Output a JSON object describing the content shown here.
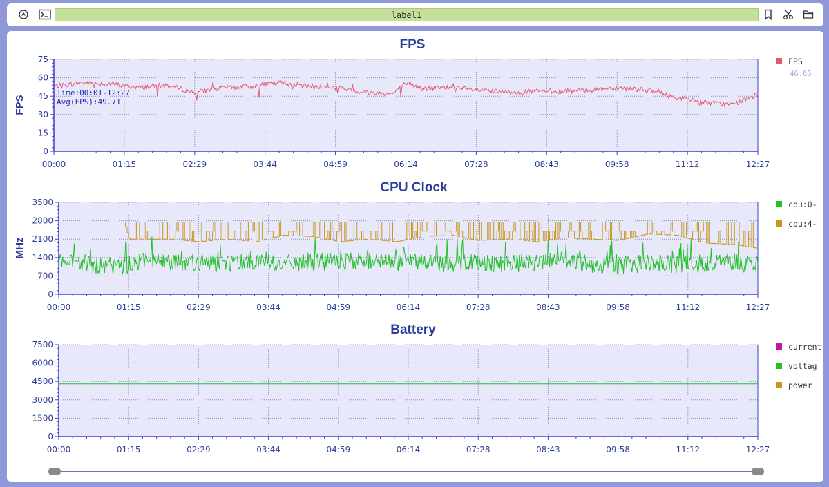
{
  "toolbar": {
    "label": "label1",
    "left_icons": [
      "record-icon",
      "terminal-icon"
    ],
    "right_icons": [
      "bookmark-icon",
      "scissors-icon",
      "folder-icon"
    ]
  },
  "time_ticks": [
    "00:00",
    "01:15",
    "02:29",
    "03:44",
    "04:59",
    "06:14",
    "07:28",
    "08:43",
    "09:58",
    "11:12",
    "12:27"
  ],
  "charts": [
    {
      "title": "FPS",
      "ylabel": "FPS",
      "yticks": [
        "0",
        "15",
        "30",
        "45",
        "60",
        "75"
      ],
      "ylim": [
        0,
        75
      ],
      "annotation": [
        "Time:00:01-12:27",
        "Avg(FPS):49.71"
      ],
      "legend": [
        {
          "label": "FPS",
          "color": "#e8566f",
          "value": "46.66"
        }
      ]
    },
    {
      "title": "CPU Clock",
      "ylabel": "MHz",
      "yticks": [
        "0",
        "700",
        "1400",
        "2100",
        "2800",
        "3500"
      ],
      "ylim": [
        0,
        3500
      ],
      "legend": [
        {
          "label": "cpu:0-",
          "color": "#22c02a"
        },
        {
          "label": "cpu:4-",
          "color": "#c9951e"
        }
      ]
    },
    {
      "title": "Battery",
      "ylabel": "",
      "yticks": [
        "0",
        "1500",
        "3000",
        "4500",
        "6000",
        "7500"
      ],
      "ylim": [
        0,
        7500
      ],
      "legend": [
        {
          "label": "current",
          "color": "#c2169d"
        },
        {
          "label": "voltag",
          "color": "#22c02a"
        },
        {
          "label": "power",
          "color": "#c9951e"
        }
      ]
    }
  ],
  "chart_data": [
    {
      "type": "line",
      "title": "FPS",
      "ylabel": "FPS",
      "ylim": [
        0,
        75
      ],
      "x_range": [
        "00:00",
        "12:27"
      ],
      "series": [
        {
          "name": "FPS",
          "color": "#e8566f",
          "x": [
            "00:00",
            "00:30",
            "01:00",
            "01:30",
            "02:00",
            "02:29",
            "03:00",
            "03:30",
            "04:00",
            "04:30",
            "05:00",
            "05:30",
            "06:00",
            "06:14",
            "06:30",
            "07:00",
            "07:28",
            "08:00",
            "08:30",
            "09:00",
            "09:30",
            "09:58",
            "10:30",
            "11:00",
            "11:30",
            "12:00",
            "12:27"
          ],
          "values": [
            53,
            56,
            55,
            52,
            54,
            48,
            52,
            53,
            56,
            53,
            52,
            48,
            47,
            56,
            51,
            52,
            50,
            48,
            49,
            49,
            50,
            52,
            50,
            44,
            40,
            38,
            46
          ]
        }
      ],
      "grid": true
    },
    {
      "type": "line",
      "title": "CPU Clock",
      "ylabel": "MHz",
      "ylim": [
        0,
        3500
      ],
      "x_range": [
        "00:00",
        "12:27"
      ],
      "series": [
        {
          "name": "cpu:0-",
          "color": "#22c02a",
          "x": [
            "00:00",
            "00:30",
            "01:00",
            "01:30",
            "02:00",
            "02:29",
            "03:00",
            "03:30",
            "04:00",
            "04:30",
            "05:00",
            "05:30",
            "06:00",
            "06:30",
            "07:00",
            "07:28",
            "08:00",
            "08:30",
            "09:00",
            "09:30",
            "09:58",
            "10:30",
            "11:00",
            "11:30",
            "12:00",
            "12:27"
          ],
          "values": [
            1200,
            1100,
            1000,
            1300,
            1250,
            1150,
            1200,
            1300,
            1150,
            1250,
            1200,
            1300,
            1200,
            1250,
            1150,
            1250,
            1150,
            1200,
            1300,
            1150,
            1100,
            1200,
            1100,
            1150,
            1250,
            1100
          ]
        },
        {
          "name": "cpu:4-",
          "color": "#c9951e",
          "x": [
            "00:00",
            "01:10",
            "01:15",
            "02:00",
            "02:29",
            "03:00",
            "03:30",
            "04:00",
            "04:30",
            "05:00",
            "05:30",
            "06:00",
            "06:30",
            "07:00",
            "07:28",
            "08:00",
            "08:30",
            "09:00",
            "09:30",
            "09:58",
            "10:30",
            "11:00",
            "11:30",
            "12:00",
            "12:27"
          ],
          "values": [
            2750,
            2750,
            2100,
            2100,
            2000,
            2100,
            2000,
            2250,
            2200,
            2000,
            2100,
            2000,
            2200,
            2250,
            2050,
            2100,
            2000,
            2150,
            2100,
            2050,
            2300,
            2250,
            1950,
            1900,
            1750
          ]
        }
      ],
      "grid": true
    },
    {
      "type": "line",
      "title": "Battery",
      "ylim": [
        0,
        7500
      ],
      "x_range": [
        "00:00",
        "12:27"
      ],
      "series": [
        {
          "name": "voltag",
          "color": "#22c02a",
          "x": [
            "00:00",
            "12:27"
          ],
          "values": [
            4300,
            4300
          ]
        }
      ],
      "grid": true
    }
  ]
}
